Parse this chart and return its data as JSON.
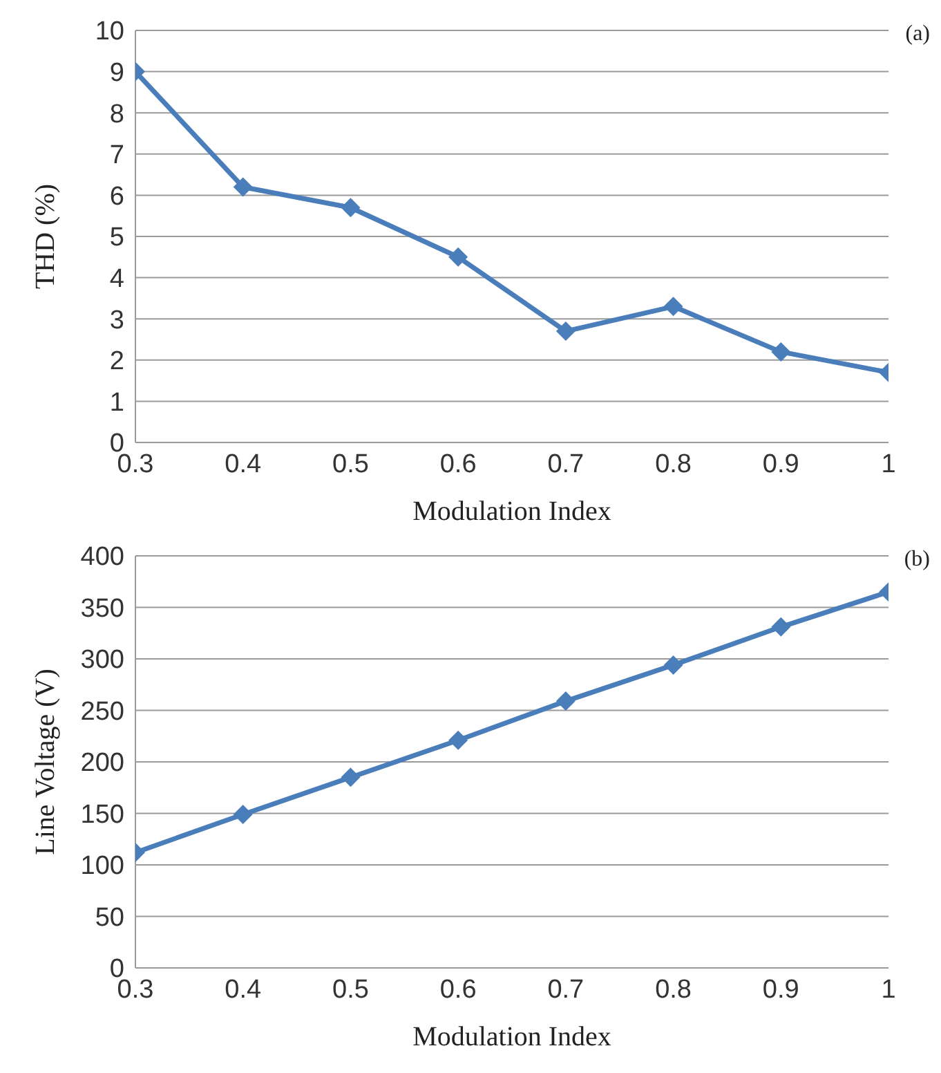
{
  "chart_data": [
    {
      "type": "line",
      "xlabel": "Modulation Index",
      "ylabel": "THD (%)",
      "annotations": [
        "(a)"
      ],
      "x": [
        0.3,
        0.4,
        0.5,
        0.6,
        0.7,
        0.8,
        0.9,
        1
      ],
      "series": [
        {
          "color": "#4a7ebb",
          "values": [
            9,
            6.2,
            5.7,
            4.5,
            2.7,
            3.3,
            2.2,
            1.7
          ]
        }
      ],
      "xlim": [
        0.3,
        1
      ],
      "xticks": [
        0.3,
        0.4,
        0.5,
        0.6,
        0.7,
        0.8,
        0.9,
        1
      ],
      "ylim": [
        0,
        10
      ],
      "yticks": [
        0,
        1,
        2,
        3,
        4,
        5,
        6,
        7,
        8,
        9,
        10
      ],
      "grid": "y",
      "marker": "diamond",
      "line_style": "solid",
      "legend": false
    },
    {
      "type": "line",
      "xlabel": "Modulation Index",
      "ylabel": "Line Voltage (V)",
      "annotations": [
        "(b)"
      ],
      "x": [
        0.3,
        0.4,
        0.5,
        0.6,
        0.7,
        0.8,
        0.9,
        1
      ],
      "series": [
        {
          "color": "#4a7ebb",
          "values": [
            112,
            149,
            185,
            221,
            259,
            294,
            331,
            365
          ]
        }
      ],
      "xlim": [
        0.3,
        1
      ],
      "xticks": [
        0.3,
        0.4,
        0.5,
        0.6,
        0.7,
        0.8,
        0.9,
        1
      ],
      "ylim": [
        0,
        400
      ],
      "yticks": [
        0,
        50,
        100,
        150,
        200,
        250,
        300,
        350,
        400
      ],
      "grid": "y",
      "marker": "diamond",
      "line_style": "solid",
      "legend": false
    }
  ]
}
